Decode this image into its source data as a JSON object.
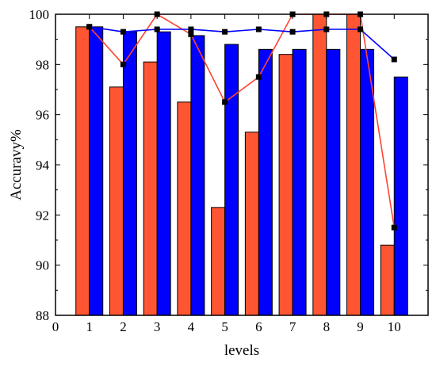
{
  "chart_data": {
    "type": "bar",
    "xlabel": "levels",
    "ylabel": "Accuravy%",
    "xlim": [
      0,
      11
    ],
    "ylim": [
      88,
      100
    ],
    "x_ticks": [
      0,
      1,
      2,
      3,
      4,
      5,
      6,
      7,
      8,
      9,
      10
    ],
    "y_ticks": [
      88,
      90,
      92,
      94,
      96,
      98,
      100
    ],
    "grid": false,
    "legend": "none",
    "colors": {
      "bar_a": "#ff5533",
      "bar_b": "#0000ff",
      "line_a": "#ff4433",
      "line_b": "#0000ff",
      "marker": "#000000"
    },
    "x": [
      1,
      2,
      3,
      4,
      5,
      6,
      7,
      8,
      9,
      10
    ],
    "bar_series": [
      {
        "values": [
          99.5,
          97.1,
          98.1,
          96.5,
          92.3,
          95.3,
          98.4,
          100,
          100,
          90.8
        ]
      },
      {
        "values": [
          99.5,
          99.3,
          99.3,
          99.15,
          98.8,
          98.6,
          98.6,
          98.6,
          98.6,
          97.5
        ]
      }
    ],
    "line_series": [
      {
        "values": [
          99.5,
          98.0,
          100,
          99.2,
          96.5,
          97.5,
          100,
          100,
          100,
          91.5
        ]
      },
      {
        "values": [
          99.5,
          99.3,
          99.4,
          99.4,
          99.3,
          99.4,
          99.3,
          99.4,
          99.4,
          98.2
        ]
      }
    ]
  }
}
